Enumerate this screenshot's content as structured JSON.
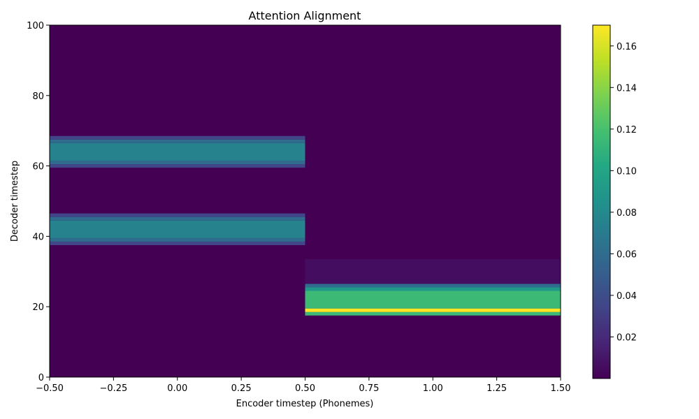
{
  "chart_data": {
    "type": "heatmap",
    "title": "Attention Alignment",
    "xlabel": "Encoder timestep (Phonemes)",
    "ylabel": "Decoder timestep",
    "xlim": [
      -0.5,
      1.5
    ],
    "ylim": [
      0,
      100
    ],
    "x_ticks": [
      "−0.50",
      "−0.25",
      "0.00",
      "0.25",
      "0.50",
      "0.75",
      "1.00",
      "1.25",
      "1.50"
    ],
    "y_ticks": [
      "0",
      "20",
      "40",
      "60",
      "80",
      "100"
    ],
    "colorbar": {
      "colormap": "viridis",
      "vmin": 0.0,
      "vmax": 0.17,
      "ticks": [
        "0.02",
        "0.04",
        "0.06",
        "0.08",
        "0.10",
        "0.12",
        "0.14",
        "0.16"
      ]
    },
    "encoder_columns": [
      0,
      1
    ],
    "background_value": 0.0,
    "cells": [
      {
        "column": 0,
        "y0": 37.5,
        "y1": 38.5,
        "value": 0.035
      },
      {
        "column": 0,
        "y0": 38.5,
        "y1": 39.5,
        "value": 0.06
      },
      {
        "column": 0,
        "y0": 39.5,
        "y1": 44.5,
        "value": 0.075
      },
      {
        "column": 0,
        "y0": 44.5,
        "y1": 45.5,
        "value": 0.06
      },
      {
        "column": 0,
        "y0": 45.5,
        "y1": 46.5,
        "value": 0.035
      },
      {
        "column": 0,
        "y0": 59.5,
        "y1": 60.5,
        "value": 0.035
      },
      {
        "column": 0,
        "y0": 60.5,
        "y1": 61.5,
        "value": 0.06
      },
      {
        "column": 0,
        "y0": 61.5,
        "y1": 66.5,
        "value": 0.075
      },
      {
        "column": 0,
        "y0": 66.5,
        "y1": 67.5,
        "value": 0.06
      },
      {
        "column": 0,
        "y0": 67.5,
        "y1": 68.5,
        "value": 0.035
      },
      {
        "column": 1,
        "y0": 17.5,
        "y1": 18.5,
        "value": 0.115
      },
      {
        "column": 1,
        "y0": 18.5,
        "y1": 19.5,
        "value": 0.17
      },
      {
        "column": 1,
        "y0": 19.5,
        "y1": 24.5,
        "value": 0.115
      },
      {
        "column": 1,
        "y0": 24.5,
        "y1": 25.5,
        "value": 0.09
      },
      {
        "column": 1,
        "y0": 25.5,
        "y1": 26.5,
        "value": 0.06
      },
      {
        "column": 1,
        "y0": 26.5,
        "y1": 33.5,
        "value": 0.006
      }
    ]
  }
}
